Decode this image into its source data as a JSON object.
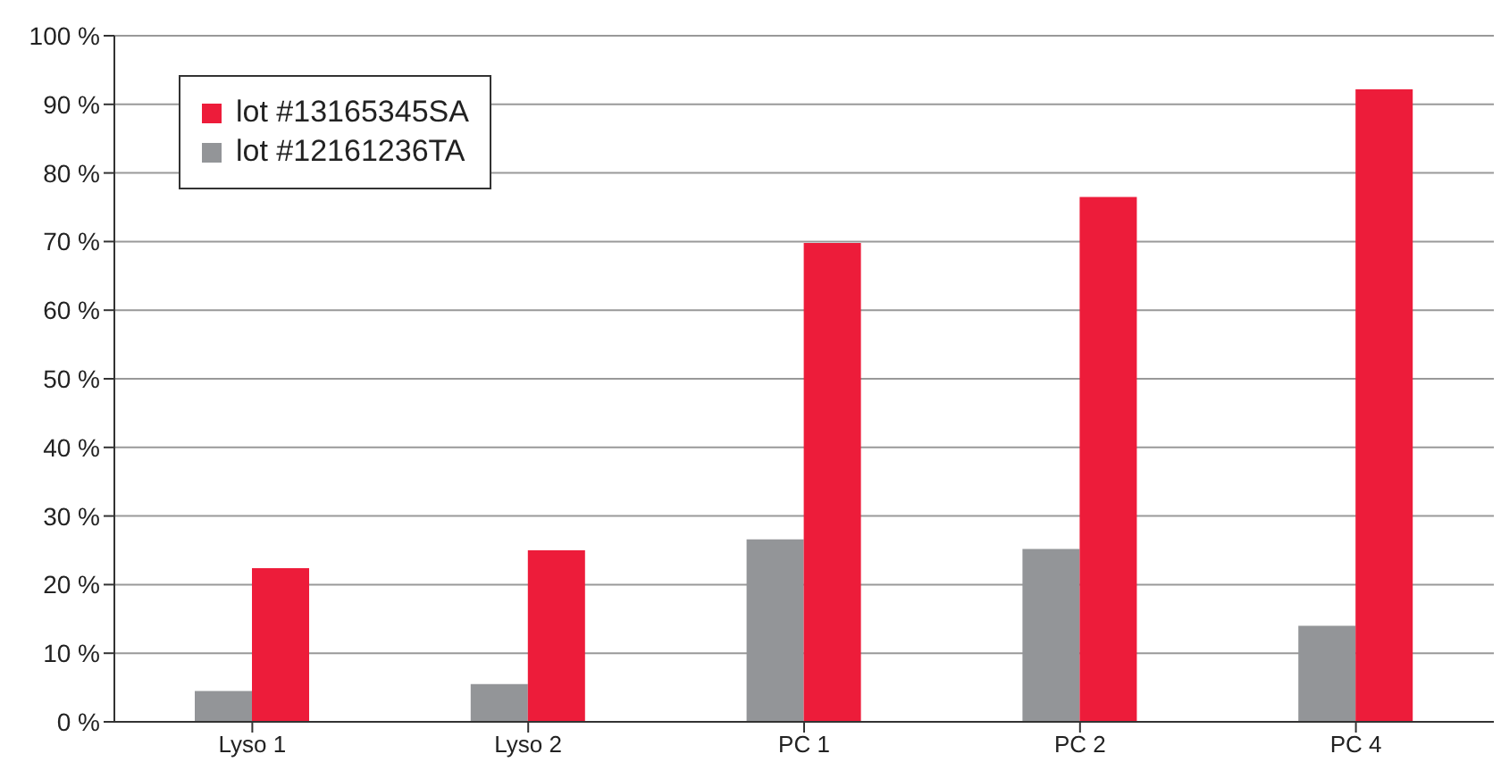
{
  "chart_data": {
    "type": "bar",
    "categories": [
      "Lyso 1",
      "Lyso 2",
      "PC 1",
      "PC 2",
      "PC 4"
    ],
    "series": [
      {
        "name": "lot #13165345SA",
        "color": "#ed1c3a",
        "values": [
          22.4,
          25,
          69.8,
          76.5,
          92.2
        ]
      },
      {
        "name": "lot #12161236TA",
        "color": "#939598",
        "values": [
          4.5,
          5.5,
          26.6,
          25.2,
          14
        ]
      }
    ],
    "ylim": [
      0,
      100
    ],
    "yticks": [
      {
        "value": 0,
        "label": "0 %"
      },
      {
        "value": 10,
        "label": "10 %"
      },
      {
        "value": 20,
        "label": "20 %"
      },
      {
        "value": 30,
        "label": "30 %"
      },
      {
        "value": 40,
        "label": "40 %"
      },
      {
        "value": 50,
        "label": "50 %"
      },
      {
        "value": 60,
        "label": "60 %"
      },
      {
        "value": 70,
        "label": "70 %"
      },
      {
        "value": 80,
        "label": "80 %"
      },
      {
        "value": 90,
        "label": "90 %"
      },
      {
        "value": 100,
        "label": "100 %"
      }
    ],
    "grid": "y",
    "legend": "top left"
  }
}
